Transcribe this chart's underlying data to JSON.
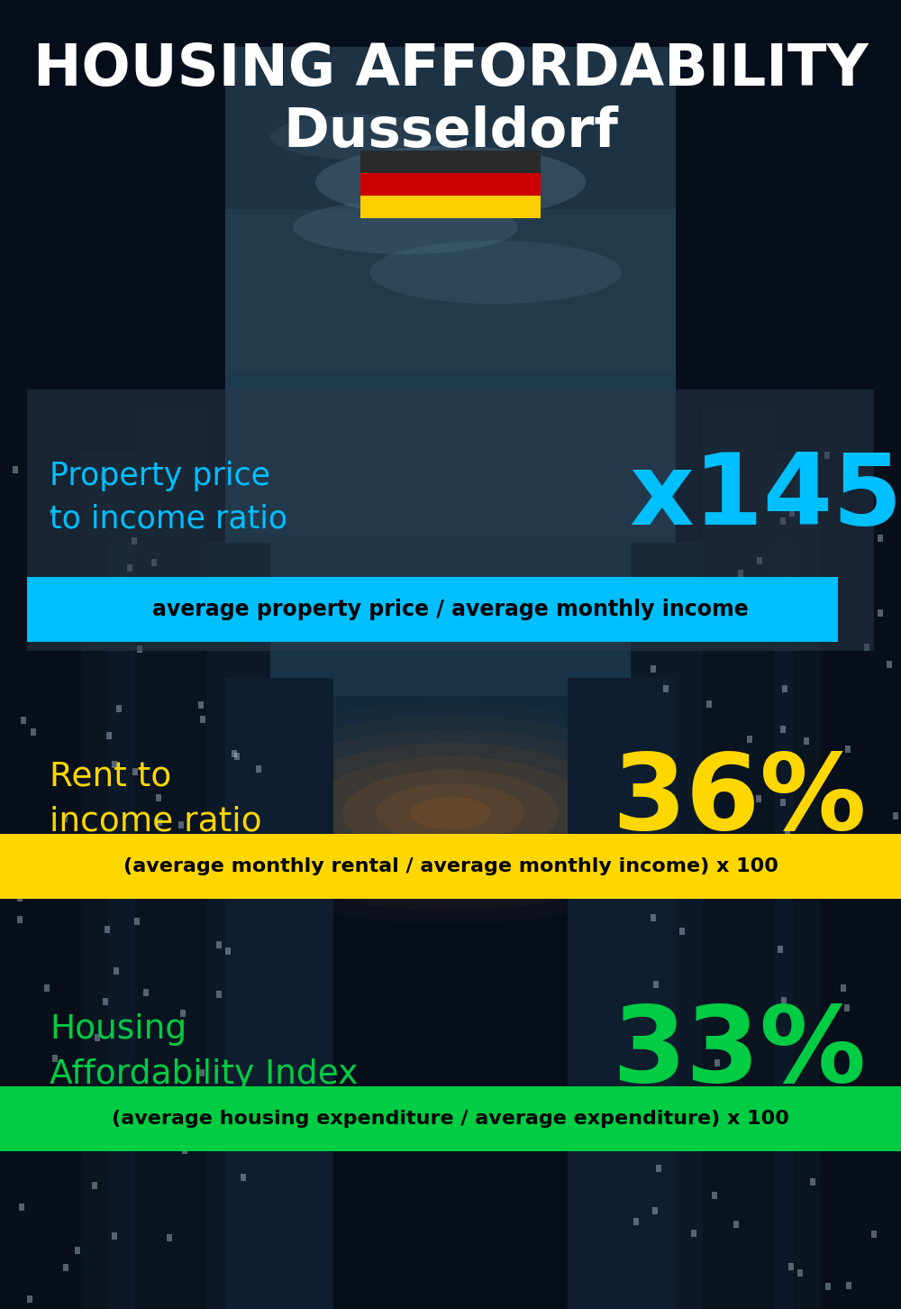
{
  "title_line1": "HOUSING AFFORDABILITY",
  "title_line2": "Dusseldorf",
  "section1_label": "Property price\nto income ratio",
  "section1_value": "x145",
  "section1_sublabel": "average property price / average monthly income",
  "section1_label_color": "#00bfff",
  "section1_value_color": "#00bfff",
  "section1_box_color": "#00bfff",
  "section2_label": "Rent to\nincome ratio",
  "section2_value": "36%",
  "section2_sublabel": "(average monthly rental / average monthly income) x 100",
  "section2_label_color": "#FFD700",
  "section2_value_color": "#FFD700",
  "section2_box_color": "#FFD700",
  "section3_label": "Housing\nAffordability Index",
  "section3_value": "33%",
  "section3_sublabel": "(average housing expenditure / average expenditure) x 100",
  "section3_label_color": "#00cc44",
  "section3_value_color": "#00cc44",
  "section3_box_color": "#00cc44",
  "background_color": "#050e1a",
  "title_color": "#ffffff",
  "sublabel_text_color": "#000000",
  "flag_black": "#2a2a2a",
  "flag_red": "#CC0000",
  "flag_gold": "#FFCE00"
}
